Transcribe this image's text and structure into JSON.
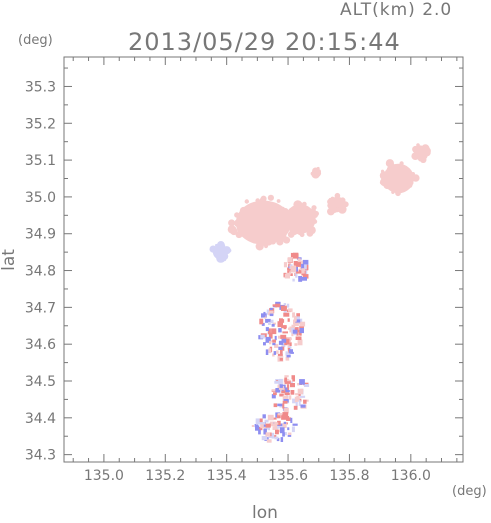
{
  "header": {
    "alt_label": "ALT(km) 2.0",
    "timestamp": "2013/05/29 20:15:44",
    "y_unit": "(deg)",
    "x_unit": "(deg)"
  },
  "chart_data": {
    "type": "heatmap",
    "title": "2013/05/29 20:15:44",
    "xlabel": "lon",
    "ylabel": "lat",
    "xlim": [
      134.87,
      136.17
    ],
    "ylim": [
      34.28,
      35.38
    ],
    "xticks": [
      "135.0",
      "135.2",
      "135.4",
      "135.6",
      "135.8",
      "136.0"
    ],
    "yticks": [
      "34.3",
      "34.4",
      "34.5",
      "34.6",
      "34.7",
      "34.8",
      "34.9",
      "35.0",
      "35.1",
      "35.2",
      "35.3"
    ],
    "grid": false,
    "colors": {
      "positive": "#f08a8a",
      "weak_positive": "#f6cccc",
      "negative": "#8e8ef0",
      "weak_negative": "#d4d4f6",
      "axis": "#777777"
    },
    "echo_regions": [
      {
        "label": "main-echo",
        "lon": 135.52,
        "lat": 34.93,
        "rx": 0.09,
        "ry": 0.06,
        "sign": "weak_positive"
      },
      {
        "label": "main-echo-east",
        "lon": 135.64,
        "lat": 34.94,
        "rx": 0.05,
        "ry": 0.04,
        "sign": "weak_positive"
      },
      {
        "label": "east-band-1",
        "lon": 135.76,
        "lat": 34.98,
        "rx": 0.03,
        "ry": 0.02,
        "sign": "weak_positive"
      },
      {
        "label": "ne-cell-1",
        "lon": 135.96,
        "lat": 35.05,
        "rx": 0.05,
        "ry": 0.04,
        "sign": "weak_positive"
      },
      {
        "label": "ne-cell-2",
        "lon": 136.03,
        "lat": 35.12,
        "rx": 0.02,
        "ry": 0.02,
        "sign": "weak_positive"
      },
      {
        "label": "small-cell-n",
        "lon": 135.69,
        "lat": 35.07,
        "rx": 0.012,
        "ry": 0.01,
        "sign": "weak_positive"
      },
      {
        "label": "west-cell",
        "lon": 135.38,
        "lat": 34.85,
        "rx": 0.025,
        "ry": 0.02,
        "sign": "weak_negative"
      },
      {
        "label": "mid-cluster",
        "lon": 135.62,
        "lat": 34.81,
        "rx": 0.04,
        "ry": 0.04,
        "sign": "mixed"
      },
      {
        "label": "south-cluster-1",
        "lon": 135.57,
        "lat": 34.64,
        "rx": 0.07,
        "ry": 0.08,
        "sign": "mixed"
      },
      {
        "label": "south-cluster-2",
        "lon": 135.6,
        "lat": 34.47,
        "rx": 0.06,
        "ry": 0.05,
        "sign": "mixed"
      },
      {
        "label": "south-cluster-3",
        "lon": 135.55,
        "lat": 34.38,
        "rx": 0.07,
        "ry": 0.04,
        "sign": "mixed"
      }
    ]
  }
}
